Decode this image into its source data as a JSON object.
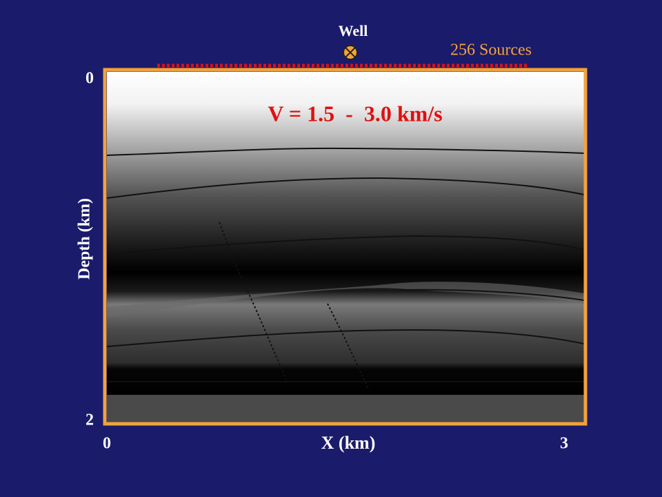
{
  "chart_data": {
    "type": "image",
    "title": "V = 1.5  -  3.0 km/s",
    "x_label": "X (km)",
    "y_label": "Depth (km)",
    "xlim": [
      0,
      3
    ],
    "ylim": [
      2,
      0
    ],
    "xticks": [
      0,
      3
    ],
    "yticks": [
      0,
      2
    ],
    "annotations": [
      "Well",
      "256 Sources"
    ]
  }
}
